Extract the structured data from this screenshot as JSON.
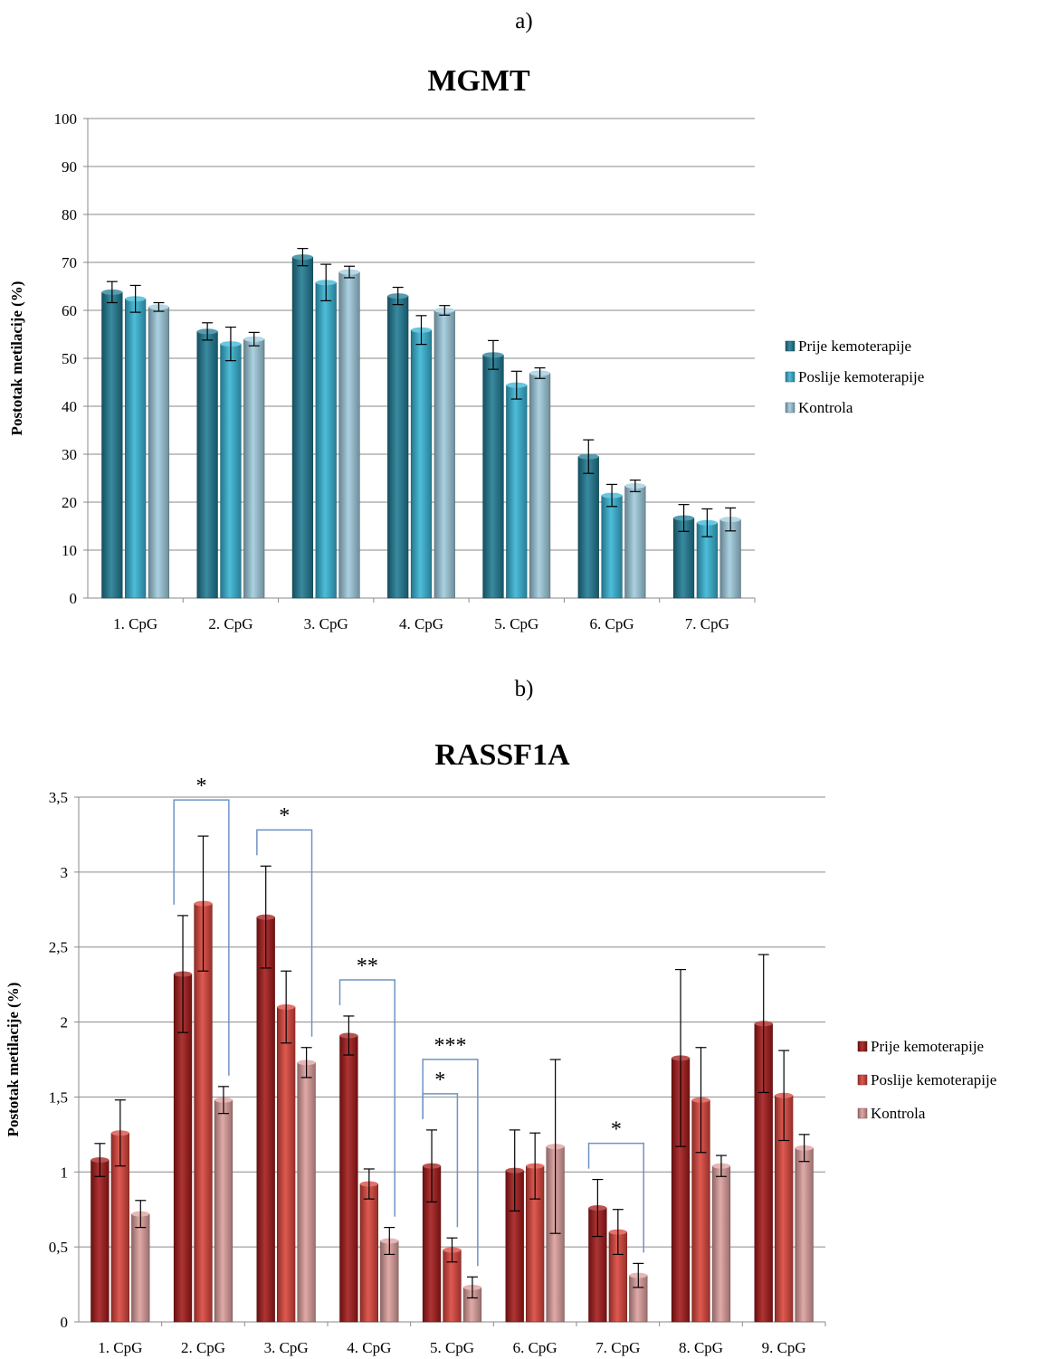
{
  "panels": {
    "a": {
      "label": "a)"
    },
    "b": {
      "label": "b)"
    }
  },
  "chart_data": [
    {
      "type": "bar",
      "title": "MGMT",
      "xlabel": "",
      "ylabel": "Postotak metilacije (%)",
      "ylim": [
        0,
        100
      ],
      "yticks": [
        "0",
        "10",
        "20",
        "30",
        "40",
        "50",
        "60",
        "70",
        "80",
        "90",
        "100"
      ],
      "grid": true,
      "legend_position": "right",
      "categories": [
        "1. CpG",
        "2. CpG",
        "3. CpG",
        "4. CpG",
        "5. CpG",
        "6. CpG",
        "7. CpG"
      ],
      "series": [
        {
          "name": "Prije kemoterapije",
          "color": "#1f7a93",
          "values": [
            63.8,
            55.6,
            71.1,
            63.0,
            50.7,
            29.5,
            16.7
          ],
          "errors": [
            2.2,
            1.8,
            1.8,
            1.8,
            3.0,
            3.5,
            2.8
          ]
        },
        {
          "name": "Poslije kemoterapije",
          "color": "#36b4d5",
          "values": [
            62.4,
            53.0,
            65.8,
            55.9,
            44.4,
            21.4,
            15.7
          ],
          "errors": [
            2.8,
            3.5,
            3.8,
            3.0,
            2.9,
            2.3,
            2.9
          ]
        },
        {
          "name": "Kontrola",
          "color": "#9fcbdd",
          "values": [
            60.7,
            54.0,
            68.0,
            60.0,
            46.9,
            23.4,
            16.4
          ],
          "errors": [
            0.9,
            1.4,
            1.2,
            1.0,
            1.1,
            1.2,
            2.4
          ]
        }
      ]
    },
    {
      "type": "bar",
      "title": "RASSF1A",
      "xlabel": "",
      "ylabel": "Postotak metilacije (%)",
      "ylim": [
        0,
        3.5
      ],
      "yticks": [
        "0",
        "0,5",
        "1",
        "1,5",
        "2",
        "2,5",
        "3",
        "3,5"
      ],
      "grid": true,
      "legend_position": "right",
      "categories": [
        "1. CpG",
        "2. CpG",
        "3. CpG",
        "4. CpG",
        "5. CpG",
        "6. CpG",
        "7. CpG",
        "8. CpG",
        "9. CpG"
      ],
      "series": [
        {
          "name": "Prije kemoterapije",
          "color": "#a31818",
          "values": [
            1.08,
            2.32,
            2.7,
            1.91,
            1.04,
            1.01,
            0.76,
            1.76,
            1.99
          ],
          "errors": [
            0.11,
            0.39,
            0.34,
            0.13,
            0.24,
            0.27,
            0.19,
            0.59,
            0.46
          ]
        },
        {
          "name": "Poslije kemoterapije",
          "color": "#d9433a",
          "values": [
            1.26,
            2.79,
            2.1,
            0.92,
            0.48,
            1.04,
            0.6,
            1.48,
            1.51
          ],
          "errors": [
            0.22,
            0.45,
            0.24,
            0.1,
            0.08,
            0.22,
            0.15,
            0.35,
            0.3
          ]
        },
        {
          "name": "Kontrola",
          "color": "#dc9e9c",
          "values": [
            0.72,
            1.48,
            1.73,
            0.54,
            0.23,
            1.17,
            0.31,
            1.04,
            1.16
          ],
          "errors": [
            0.09,
            0.09,
            0.1,
            0.09,
            0.07,
            0.58,
            0.08,
            0.07,
            0.09
          ]
        }
      ],
      "significance": [
        {
          "label": "*",
          "category": "2. CpG",
          "from_series": 0,
          "to_series": 2
        },
        {
          "label": "*",
          "category": "3. CpG",
          "from_series": 0,
          "to_series": 2
        },
        {
          "label": "**",
          "category": "4. CpG",
          "from_series": 0,
          "to_series": 2
        },
        {
          "label": "***",
          "category": "5. CpG",
          "from_series": 0,
          "to_series": 2
        },
        {
          "label": "*",
          "category": "5. CpG",
          "from_series": 0,
          "to_series": 1
        },
        {
          "label": "*",
          "category": "7. CpG",
          "from_series": 0,
          "to_series": 2
        }
      ]
    }
  ]
}
